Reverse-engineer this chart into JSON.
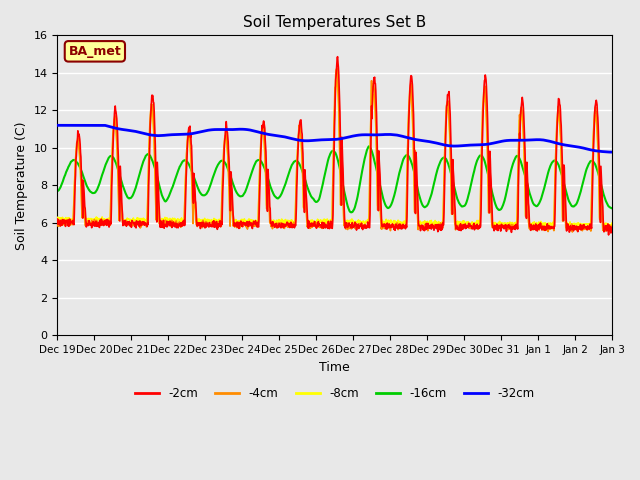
{
  "title": "Soil Temperatures Set B",
  "xlabel": "Time",
  "ylabel": "Soil Temperature (C)",
  "ylim": [
    0,
    16
  ],
  "yticks": [
    0,
    2,
    4,
    6,
    8,
    10,
    12,
    14,
    16
  ],
  "annotation_text": "BA_met",
  "annotation_color": "#8B0000",
  "annotation_bg": "#FFFF99",
  "line_colors": {
    "-2cm": "#FF0000",
    "-4cm": "#FF8C00",
    "-8cm": "#FFFF00",
    "-16cm": "#00CC00",
    "-32cm": "#0000FF"
  },
  "line_widths": {
    "-2cm": 1.2,
    "-4cm": 1.2,
    "-8cm": 1.2,
    "-16cm": 1.5,
    "-32cm": 2.0
  },
  "background_color": "#E8E8E8",
  "plot_bg_color": "#E8E8E8",
  "grid_color": "#FFFFFF",
  "x_tick_labels": [
    "Dec 19",
    "Dec 20",
    "Dec 21",
    "Dec 22",
    "Dec 23",
    "Dec 24",
    "Dec 25",
    "Dec 26",
    "Dec 27",
    "Dec 28",
    "Dec 29",
    "Dec 30",
    "Dec 31",
    "Jan 1",
    "Jan 2",
    "Jan 3"
  ],
  "figwidth": 6.4,
  "figheight": 4.8,
  "dpi": 100
}
